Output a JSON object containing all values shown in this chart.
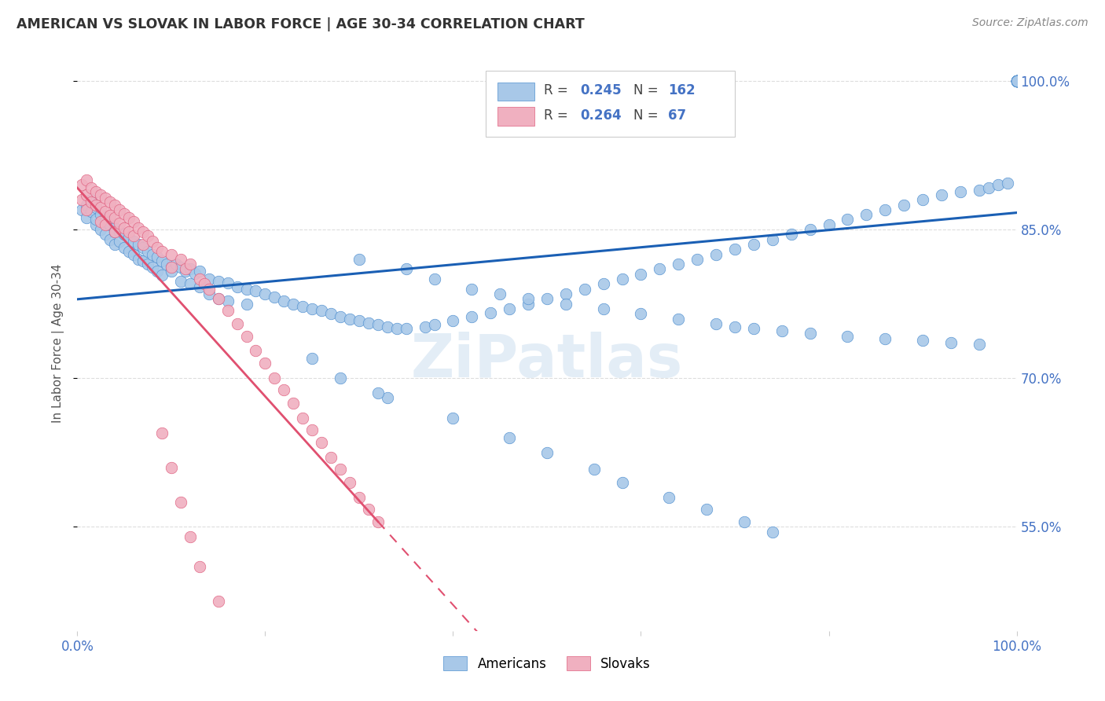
{
  "title": "AMERICAN VS SLOVAK IN LABOR FORCE | AGE 30-34 CORRELATION CHART",
  "source": "Source: ZipAtlas.com",
  "ylabel": "In Labor Force | Age 30-34",
  "xlim": [
    0.0,
    1.0
  ],
  "ylim": [
    0.445,
    1.025
  ],
  "ytick_positions": [
    0.55,
    0.7,
    0.85,
    1.0
  ],
  "ytick_labels": [
    "55.0%",
    "70.0%",
    "85.0%",
    "100.0%"
  ],
  "american_color": "#a8c8e8",
  "american_edge_color": "#5090d0",
  "slovak_color": "#f0b0c0",
  "slovak_edge_color": "#e06080",
  "trend_american_color": "#1a5fb4",
  "trend_slovak_color": "#e05070",
  "american_R": "0.245",
  "american_N": "162",
  "slovak_R": "0.264",
  "slovak_N": "67",
  "watermark": "ZiPatlas",
  "background_color": "#ffffff",
  "grid_color": "#dddddd",
  "axis_tick_color": "#4472c4",
  "american_scatter_x": [
    0.005,
    0.01,
    0.01,
    0.015,
    0.015,
    0.02,
    0.02,
    0.02,
    0.025,
    0.025,
    0.03,
    0.03,
    0.03,
    0.035,
    0.035,
    0.04,
    0.04,
    0.04,
    0.045,
    0.045,
    0.05,
    0.05,
    0.055,
    0.055,
    0.06,
    0.06,
    0.065,
    0.065,
    0.07,
    0.07,
    0.075,
    0.075,
    0.08,
    0.08,
    0.085,
    0.085,
    0.09,
    0.09,
    0.095,
    0.1,
    0.1,
    0.105,
    0.11,
    0.11,
    0.115,
    0.12,
    0.12,
    0.125,
    0.13,
    0.13,
    0.14,
    0.14,
    0.15,
    0.15,
    0.16,
    0.16,
    0.17,
    0.18,
    0.18,
    0.19,
    0.2,
    0.21,
    0.22,
    0.23,
    0.24,
    0.25,
    0.26,
    0.27,
    0.28,
    0.29,
    0.3,
    0.31,
    0.32,
    0.33,
    0.34,
    0.35,
    0.37,
    0.38,
    0.4,
    0.42,
    0.44,
    0.46,
    0.48,
    0.5,
    0.52,
    0.54,
    0.56,
    0.58,
    0.6,
    0.62,
    0.64,
    0.66,
    0.68,
    0.7,
    0.72,
    0.74,
    0.76,
    0.78,
    0.8,
    0.82,
    0.84,
    0.86,
    0.88,
    0.9,
    0.92,
    0.94,
    0.96,
    0.97,
    0.98,
    0.99,
    1.0,
    1.0,
    1.0,
    1.0,
    1.0,
    1.0,
    1.0,
    1.0,
    1.0,
    1.0,
    1.0,
    1.0,
    1.0,
    1.0,
    1.0,
    1.0,
    1.0,
    1.0,
    1.0,
    1.0,
    0.3,
    0.35,
    0.38,
    0.42,
    0.45,
    0.48,
    0.52,
    0.56,
    0.6,
    0.64,
    0.68,
    0.7,
    0.72,
    0.75,
    0.78,
    0.82,
    0.86,
    0.9,
    0.93,
    0.96,
    0.33,
    0.4,
    0.46,
    0.5,
    0.55,
    0.58,
    0.63,
    0.67,
    0.71,
    0.74,
    0.25,
    0.28,
    0.32
  ],
  "american_scatter_y": [
    0.87,
    0.875,
    0.862,
    0.868,
    0.88,
    0.855,
    0.872,
    0.86,
    0.865,
    0.85,
    0.862,
    0.858,
    0.845,
    0.855,
    0.84,
    0.852,
    0.848,
    0.835,
    0.848,
    0.838,
    0.845,
    0.832,
    0.842,
    0.828,
    0.838,
    0.825,
    0.835,
    0.82,
    0.832,
    0.818,
    0.828,
    0.815,
    0.825,
    0.812,
    0.822,
    0.808,
    0.818,
    0.804,
    0.815,
    0.812,
    0.808,
    0.815,
    0.812,
    0.798,
    0.808,
    0.81,
    0.795,
    0.806,
    0.808,
    0.792,
    0.8,
    0.785,
    0.798,
    0.78,
    0.796,
    0.778,
    0.792,
    0.79,
    0.775,
    0.788,
    0.785,
    0.782,
    0.778,
    0.775,
    0.772,
    0.77,
    0.768,
    0.765,
    0.762,
    0.76,
    0.758,
    0.756,
    0.754,
    0.752,
    0.75,
    0.75,
    0.752,
    0.754,
    0.758,
    0.762,
    0.766,
    0.77,
    0.775,
    0.78,
    0.785,
    0.79,
    0.795,
    0.8,
    0.805,
    0.81,
    0.815,
    0.82,
    0.825,
    0.83,
    0.835,
    0.84,
    0.845,
    0.85,
    0.855,
    0.86,
    0.865,
    0.87,
    0.875,
    0.88,
    0.885,
    0.888,
    0.89,
    0.892,
    0.895,
    0.897,
    1.0,
    1.0,
    1.0,
    1.0,
    1.0,
    1.0,
    1.0,
    1.0,
    1.0,
    1.0,
    1.0,
    1.0,
    1.0,
    1.0,
    1.0,
    1.0,
    1.0,
    1.0,
    1.0,
    1.0,
    0.82,
    0.81,
    0.8,
    0.79,
    0.785,
    0.78,
    0.775,
    0.77,
    0.765,
    0.76,
    0.755,
    0.752,
    0.75,
    0.748,
    0.745,
    0.742,
    0.74,
    0.738,
    0.736,
    0.734,
    0.68,
    0.66,
    0.64,
    0.625,
    0.608,
    0.595,
    0.58,
    0.568,
    0.555,
    0.545,
    0.72,
    0.7,
    0.685
  ],
  "slovak_scatter_x": [
    0.005,
    0.005,
    0.01,
    0.01,
    0.01,
    0.015,
    0.015,
    0.02,
    0.02,
    0.025,
    0.025,
    0.025,
    0.03,
    0.03,
    0.03,
    0.035,
    0.035,
    0.04,
    0.04,
    0.04,
    0.045,
    0.045,
    0.05,
    0.05,
    0.055,
    0.055,
    0.06,
    0.06,
    0.065,
    0.07,
    0.07,
    0.075,
    0.08,
    0.085,
    0.09,
    0.1,
    0.1,
    0.11,
    0.115,
    0.12,
    0.13,
    0.135,
    0.14,
    0.15,
    0.16,
    0.17,
    0.18,
    0.19,
    0.2,
    0.21,
    0.22,
    0.23,
    0.24,
    0.25,
    0.26,
    0.27,
    0.28,
    0.29,
    0.3,
    0.31,
    0.32,
    0.09,
    0.1,
    0.11,
    0.12,
    0.13,
    0.15
  ],
  "slovak_scatter_y": [
    0.895,
    0.88,
    0.9,
    0.885,
    0.87,
    0.892,
    0.878,
    0.888,
    0.875,
    0.885,
    0.872,
    0.858,
    0.882,
    0.868,
    0.855,
    0.878,
    0.864,
    0.875,
    0.862,
    0.848,
    0.87,
    0.856,
    0.866,
    0.852,
    0.862,
    0.848,
    0.858,
    0.844,
    0.852,
    0.848,
    0.835,
    0.844,
    0.838,
    0.832,
    0.828,
    0.825,
    0.812,
    0.82,
    0.81,
    0.815,
    0.8,
    0.795,
    0.79,
    0.78,
    0.768,
    0.755,
    0.742,
    0.728,
    0.715,
    0.7,
    0.688,
    0.675,
    0.66,
    0.648,
    0.635,
    0.62,
    0.608,
    0.595,
    0.58,
    0.568,
    0.555,
    0.645,
    0.61,
    0.575,
    0.54,
    0.51,
    0.475
  ]
}
